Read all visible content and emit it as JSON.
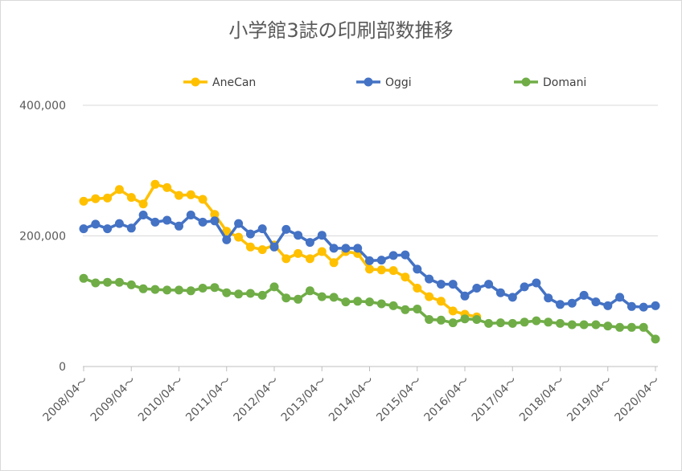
{
  "chart_data": {
    "type": "line",
    "title": "小学館3誌の印刷部数推移",
    "xlabel": "",
    "ylabel": "",
    "ylim": [
      0,
      400000
    ],
    "y_ticks": [
      "0",
      "200,000",
      "400,000"
    ],
    "y_tick_values": [
      0,
      200000,
      400000
    ],
    "x_tick_labels": [
      "2008/04～",
      "2009/04～",
      "2010/04～",
      "2011/04～",
      "2012/04～",
      "2013/04～",
      "2014/04～",
      "2015/04～",
      "2016/04～",
      "2017/04～",
      "2018/04～",
      "2019/04～",
      "2020/04～"
    ],
    "x_period": "quarterly",
    "grid": true,
    "legend_position": "top",
    "series": [
      {
        "name": "AneCan",
        "color": "#FFC000",
        "values": [
          253000,
          257000,
          258000,
          271000,
          259000,
          249000,
          279000,
          274000,
          262000,
          263000,
          256000,
          233000,
          207000,
          198000,
          183000,
          179000,
          186000,
          165000,
          173000,
          165000,
          176000,
          159000,
          176000,
          173000,
          149000,
          148000,
          147000,
          137000,
          120000,
          107000,
          100000,
          85000,
          80000,
          76000
        ]
      },
      {
        "name": "Oggi",
        "color": "#4472C4",
        "values": [
          211000,
          218000,
          211000,
          219000,
          212000,
          232000,
          221000,
          224000,
          215000,
          232000,
          221000,
          223000,
          194000,
          219000,
          203000,
          211000,
          183000,
          210000,
          201000,
          190000,
          201000,
          181000,
          181000,
          181000,
          162000,
          163000,
          170000,
          171000,
          149000,
          134000,
          126000,
          126000,
          108000,
          120000,
          126000,
          113000,
          106000,
          122000,
          128000,
          105000,
          95000,
          97000,
          109000,
          99000,
          93000,
          106000,
          92000,
          91000,
          93000
        ]
      },
      {
        "name": "Domani",
        "color": "#70AD47",
        "values": [
          135000,
          128000,
          129000,
          129000,
          125000,
          119000,
          118000,
          117000,
          117000,
          116000,
          120000,
          121000,
          113000,
          111000,
          112000,
          109000,
          122000,
          105000,
          103000,
          116000,
          107000,
          106000,
          99000,
          100000,
          99000,
          96000,
          93000,
          87000,
          88000,
          72000,
          71000,
          67000,
          73000,
          72000,
          66000,
          67000,
          66000,
          68000,
          70000,
          68000,
          66000,
          64000,
          64000,
          64000,
          62000,
          60000,
          60000,
          60000,
          42000
        ]
      }
    ]
  }
}
